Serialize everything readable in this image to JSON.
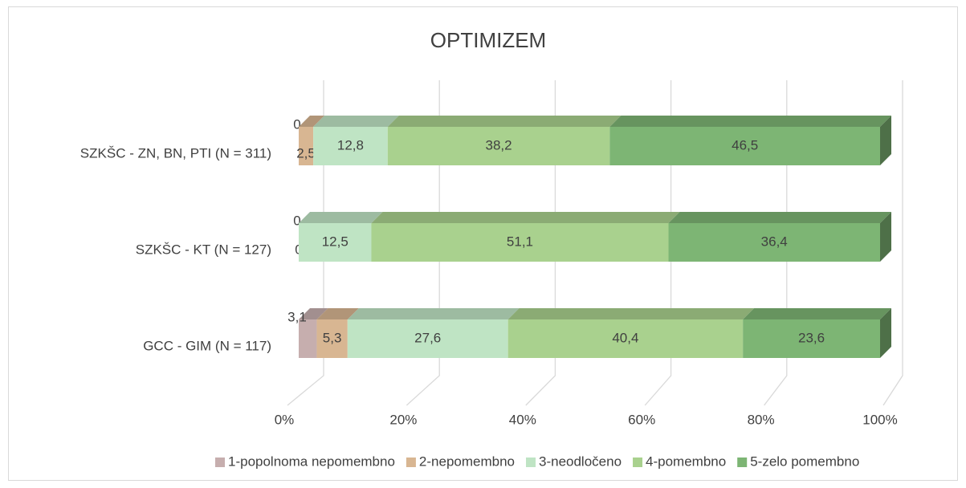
{
  "chart_data": {
    "type": "bar3d_stacked_horizontal",
    "title": "OPTIMIZEM",
    "categories": [
      "SZKŠC - ZN, BN, PTI (N = 311)",
      "SZKŠC - KT (N = 127)",
      "GCC - GIM (N = 117)"
    ],
    "series": [
      {
        "name": "1-popolnoma nepomembno",
        "color": "#c6aeae",
        "values": [
          0,
          0,
          3.1
        ],
        "value_labels": [
          "0",
          "0",
          "3,1"
        ]
      },
      {
        "name": "2-nepomembno",
        "color": "#d8b692",
        "values": [
          2.5,
          0,
          5.3
        ],
        "value_labels": [
          "2,5",
          "0",
          "5,3"
        ]
      },
      {
        "name": "3-neodločeno",
        "color": "#bfe4c4",
        "values": [
          12.8,
          12.5,
          27.6
        ],
        "value_labels": [
          "12,8",
          "12,5",
          "27,6"
        ]
      },
      {
        "name": "4-pomembno",
        "color": "#a9d18e",
        "values": [
          38.2,
          51.1,
          40.4
        ],
        "value_labels": [
          "38,2",
          "51,1",
          "40,4"
        ]
      },
      {
        "name": "5-zelo pomembno",
        "color": "#7db574",
        "values": [
          46.5,
          36.4,
          23.6
        ],
        "value_labels": [
          "46,5",
          "36,4",
          "23,6"
        ]
      }
    ],
    "xlim": [
      0,
      100
    ],
    "xticks": [
      {
        "value": 0,
        "label": "0%"
      },
      {
        "value": 20,
        "label": "20%"
      },
      {
        "value": 40,
        "label": "40%"
      },
      {
        "value": 60,
        "label": "60%"
      },
      {
        "value": 80,
        "label": "80%"
      },
      {
        "value": 100,
        "label": "100%"
      }
    ],
    "grid": true,
    "legend": "bottom"
  }
}
